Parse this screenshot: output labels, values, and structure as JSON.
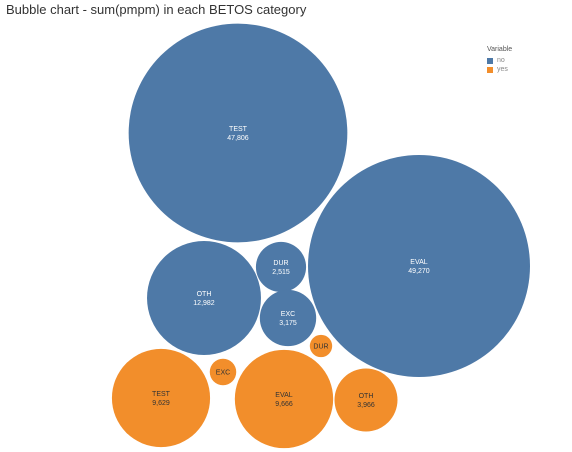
{
  "chart_data": {
    "type": "bubble",
    "title": "Bubble chart - sum(pmpm) in each BETOS category",
    "legend": {
      "title": "Variable",
      "placement": "top-right",
      "entries": [
        {
          "label": "no",
          "color": "#4e79a7"
        },
        {
          "label": "yes",
          "color": "#f28e2b"
        }
      ]
    },
    "series": [
      {
        "name": "no",
        "color": "#4e79a7",
        "points": [
          {
            "category": "TEST",
            "value": 47806,
            "value_label": "47,806"
          },
          {
            "category": "EVAL",
            "value": 49270,
            "value_label": "49,270"
          },
          {
            "category": "OTH",
            "value": 12982,
            "value_label": "12,982"
          },
          {
            "category": "DUR",
            "value": 2515,
            "value_label": "2,515"
          },
          {
            "category": "EXC",
            "value": 3175,
            "value_label": "3,175"
          }
        ]
      },
      {
        "name": "yes",
        "color": "#f28e2b",
        "points": [
          {
            "category": "TEST",
            "value": 9629,
            "value_label": "9,629"
          },
          {
            "category": "EVAL",
            "value": 9666,
            "value_label": "9,666"
          },
          {
            "category": "OTH",
            "value": 3966,
            "value_label": "3,966"
          },
          {
            "category": "EXC",
            "value": 700,
            "value_label": ""
          },
          {
            "category": "DUR",
            "value": 500,
            "value_label": ""
          }
        ]
      }
    ]
  }
}
